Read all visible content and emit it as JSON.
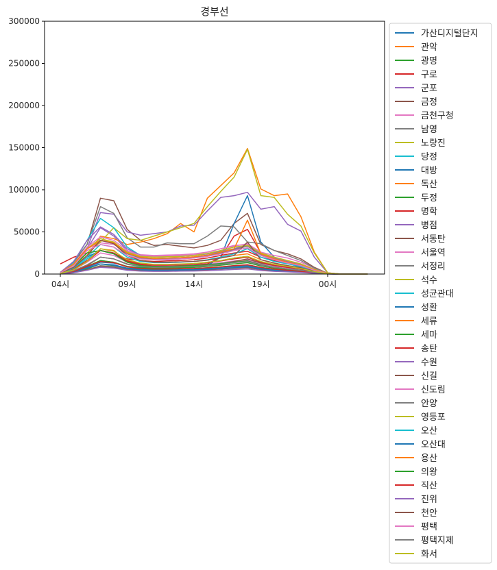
{
  "chart_data": {
    "type": "line",
    "title": "경부선",
    "xlabel": "",
    "ylabel": "",
    "x": [
      "04시",
      "05시",
      "06시",
      "07시",
      "08시",
      "09시",
      "10시",
      "11시",
      "12시",
      "13시",
      "14시",
      "15시",
      "16시",
      "17시",
      "18시",
      "19시",
      "20시",
      "21시",
      "22시",
      "23시",
      "00시",
      "01시",
      "02시",
      "03시"
    ],
    "xticks": [
      "04시",
      "09시",
      "14시",
      "19시",
      "00시"
    ],
    "ylim": [
      0,
      300000
    ],
    "yticks": [
      0,
      50000,
      100000,
      150000,
      200000,
      250000,
      300000
    ],
    "grid": false,
    "legend": "outside-right",
    "colors": [
      "#1f77b4",
      "#ff7f0e",
      "#2ca02c",
      "#d62728",
      "#9467bd",
      "#8c564b",
      "#e377c2",
      "#7f7f7f",
      "#bcbd22",
      "#17becf"
    ],
    "series": [
      {
        "name": "가산디지털단지",
        "values": [
          1500,
          8000,
          20000,
          28000,
          25000,
          14000,
          11000,
          10000,
          10500,
          11000,
          12000,
          14000,
          16000,
          19000,
          21000,
          14000,
          10000,
          8000,
          6000,
          3000,
          500,
          0,
          0,
          0
        ]
      },
      {
        "name": "관악",
        "values": [
          800,
          6000,
          15000,
          30000,
          28000,
          15000,
          11000,
          9000,
          9000,
          9500,
          10000,
          11000,
          13000,
          15000,
          16500,
          11000,
          8000,
          6000,
          4500,
          2500,
          300,
          0,
          0,
          0
        ]
      },
      {
        "name": "광명",
        "values": [
          300,
          2000,
          6000,
          12000,
          10000,
          6000,
          5000,
          4500,
          4500,
          4700,
          5000,
          5500,
          6500,
          7500,
          8500,
          6000,
          4500,
          3500,
          2500,
          1500,
          200,
          0,
          0,
          0
        ]
      },
      {
        "name": "구로",
        "values": [
          12000,
          20000,
          25000,
          28000,
          24000,
          18000,
          16000,
          15000,
          15500,
          16000,
          17000,
          19000,
          22000,
          25000,
          27000,
          20000,
          16000,
          13000,
          10000,
          5000,
          800,
          0,
          0,
          0
        ]
      },
      {
        "name": "군포",
        "values": [
          1500,
          12000,
          30000,
          55000,
          45000,
          28000,
          20000,
          17000,
          17000,
          18000,
          19000,
          21000,
          24000,
          28000,
          31000,
          22000,
          17000,
          13000,
          9000,
          4000,
          600,
          0,
          0,
          0
        ]
      },
      {
        "name": "금정",
        "values": [
          1500,
          14000,
          35000,
          90000,
          87000,
          53000,
          40000,
          34000,
          35000,
          33000,
          31000,
          34000,
          40000,
          60000,
          72000,
          35000,
          28000,
          24000,
          18000,
          8000,
          1000,
          0,
          0,
          0
        ]
      },
      {
        "name": "금천구청",
        "values": [
          600,
          5000,
          14000,
          25000,
          22000,
          14000,
          11000,
          10000,
          10000,
          10500,
          11000,
          12000,
          13500,
          15500,
          17000,
          12000,
          9000,
          7000,
          5000,
          2500,
          300,
          0,
          0,
          0
        ]
      },
      {
        "name": "남영",
        "values": [
          300,
          2000,
          5000,
          10000,
          9000,
          6000,
          5000,
          4500,
          4800,
          5000,
          5200,
          5800,
          6800,
          8000,
          9000,
          6000,
          4500,
          3500,
          2500,
          1200,
          200,
          0,
          0,
          0
        ]
      },
      {
        "name": "노량진",
        "values": [
          1500,
          10000,
          25000,
          40000,
          38000,
          25000,
          20000,
          18000,
          18500,
          19000,
          20000,
          22000,
          25000,
          30000,
          35000,
          25000,
          20000,
          15000,
          10000,
          5000,
          700,
          0,
          0,
          0
        ]
      },
      {
        "name": "당정",
        "values": [
          800,
          6000,
          18000,
          28000,
          24000,
          14000,
          10000,
          9000,
          9000,
          9500,
          10000,
          11000,
          12500,
          14000,
          15500,
          11000,
          8000,
          6000,
          4500,
          2000,
          300,
          0,
          0,
          0
        ]
      },
      {
        "name": "대방",
        "values": [
          400,
          3000,
          8000,
          14000,
          13000,
          9000,
          8000,
          7500,
          7500,
          8000,
          8500,
          10000,
          20000,
          60000,
          93000,
          38000,
          20000,
          13000,
          8000,
          3500,
          400,
          0,
          0,
          0
        ]
      },
      {
        "name": "독산",
        "values": [
          1000,
          8000,
          20000,
          45000,
          42000,
          35000,
          38000,
          42000,
          48000,
          60000,
          50000,
          90000,
          105000,
          120000,
          149000,
          101000,
          93000,
          95000,
          68000,
          26000,
          1500,
          0,
          0,
          0
        ]
      },
      {
        "name": "두정",
        "values": [
          400,
          3000,
          9000,
          16000,
          14000,
          9000,
          7500,
          7000,
          7000,
          7500,
          8000,
          9000,
          10500,
          12000,
          13500,
          9500,
          7000,
          5500,
          4000,
          2000,
          300,
          0,
          0,
          0
        ]
      },
      {
        "name": "명학",
        "values": [
          700,
          5000,
          15000,
          28000,
          25000,
          15000,
          11000,
          9500,
          9500,
          10000,
          10500,
          12000,
          20000,
          45000,
          53000,
          25000,
          18000,
          14000,
          10000,
          4500,
          600,
          0,
          0,
          0
        ]
      },
      {
        "name": "병점",
        "values": [
          1500,
          10000,
          30000,
          73000,
          71000,
          50000,
          46000,
          48000,
          50000,
          57000,
          58000,
          75000,
          91000,
          93000,
          97000,
          77000,
          80000,
          59000,
          51000,
          20000,
          1500,
          0,
          0,
          0
        ]
      },
      {
        "name": "서동탄",
        "values": [
          500,
          4000,
          10000,
          20000,
          18000,
          12000,
          9000,
          8000,
          8200,
          8500,
          9000,
          10000,
          12000,
          15000,
          18000,
          13000,
          10000,
          8000,
          6000,
          3000,
          400,
          0,
          0,
          0
        ]
      },
      {
        "name": "서울역",
        "values": [
          1500,
          12000,
          30000,
          37000,
          35000,
          27000,
          23000,
          22000,
          22500,
          23000,
          24000,
          26000,
          30000,
          33000,
          36000,
          26000,
          22000,
          19000,
          14000,
          7000,
          900,
          0,
          0,
          0
        ]
      },
      {
        "name": "서정리",
        "values": [
          1500,
          15000,
          35000,
          80000,
          72000,
          43000,
          32000,
          32000,
          37000,
          36000,
          36000,
          45000,
          57000,
          56000,
          38000,
          36000,
          28000,
          22000,
          16000,
          7000,
          800,
          0,
          0,
          0
        ]
      },
      {
        "name": "석수",
        "values": [
          1000,
          8000,
          25000,
          38000,
          55000,
          42000,
          40000,
          45000,
          50000,
          55000,
          60000,
          80000,
          98000,
          115000,
          148000,
          93000,
          91000,
          71000,
          57000,
          25000,
          1500,
          0,
          0,
          0
        ]
      },
      {
        "name": "성균관대",
        "values": [
          1000,
          14000,
          40000,
          66000,
          55000,
          32000,
          22000,
          20000,
          20500,
          21000,
          22000,
          24000,
          27000,
          30000,
          33000,
          24000,
          18000,
          14000,
          10000,
          4500,
          600,
          0,
          0,
          0
        ]
      },
      {
        "name": "성환",
        "values": [
          300,
          2500,
          7000,
          12000,
          11000,
          7000,
          6000,
          5500,
          5500,
          5800,
          6000,
          6800,
          7800,
          9000,
          10000,
          7000,
          5200,
          4000,
          2800,
          1300,
          200,
          0,
          0,
          0
        ]
      },
      {
        "name": "세류",
        "values": [
          1000,
          8000,
          22000,
          40000,
          36000,
          22000,
          16000,
          14000,
          14000,
          14500,
          15000,
          16500,
          19000,
          22000,
          24000,
          17000,
          13000,
          10000,
          7500,
          3500,
          500,
          0,
          0,
          0
        ]
      },
      {
        "name": "세마",
        "values": [
          400,
          3000,
          9000,
          16000,
          14000,
          8500,
          6500,
          6000,
          6000,
          6300,
          6600,
          7400,
          8500,
          10000,
          11000,
          7800,
          5800,
          4500,
          3200,
          1500,
          200,
          0,
          0,
          0
        ]
      },
      {
        "name": "송탄",
        "values": [
          800,
          6000,
          16000,
          28000,
          25000,
          16000,
          12000,
          11000,
          11000,
          11500,
          12000,
          13500,
          15500,
          18000,
          20000,
          14000,
          10500,
          8000,
          6000,
          2800,
          400,
          0,
          0,
          0
        ]
      },
      {
        "name": "수원",
        "values": [
          2000,
          15000,
          40000,
          56000,
          47000,
          30000,
          22000,
          20000,
          20500,
          21000,
          22000,
          24000,
          27000,
          30000,
          34000,
          24000,
          19000,
          15000,
          11000,
          5000,
          700,
          0,
          0,
          0
        ]
      },
      {
        "name": "신길",
        "values": [
          300,
          2000,
          5000,
          9000,
          8000,
          5000,
          4200,
          4000,
          4000,
          4200,
          4500,
          5000,
          5800,
          6800,
          7500,
          5200,
          4000,
          3000,
          2200,
          1000,
          150,
          0,
          0,
          0
        ]
      },
      {
        "name": "신도림",
        "values": [
          1500,
          12000,
          32000,
          44000,
          40000,
          28000,
          22000,
          21000,
          21500,
          22000,
          23000,
          26000,
          30000,
          34000,
          35000,
          25000,
          20000,
          16000,
          12000,
          5500,
          800,
          0,
          0,
          0
        ]
      },
      {
        "name": "안양",
        "values": [
          1500,
          12000,
          30000,
          40000,
          36000,
          24000,
          19000,
          17500,
          18000,
          18500,
          19500,
          21500,
          25000,
          29000,
          33000,
          23000,
          18000,
          14000,
          10500,
          5000,
          700,
          0,
          0,
          0
        ]
      },
      {
        "name": "영등포",
        "values": [
          1500,
          12000,
          30000,
          42000,
          38000,
          26000,
          21000,
          20000,
          20500,
          21000,
          22000,
          24500,
          28000,
          32000,
          34000,
          25000,
          20000,
          16000,
          12000,
          5500,
          800,
          0,
          0,
          0
        ]
      },
      {
        "name": "오산",
        "values": [
          1000,
          7000,
          20000,
          35000,
          32000,
          20000,
          15000,
          13500,
          13500,
          14000,
          15000,
          17000,
          20000,
          24000,
          30000,
          20000,
          15000,
          12000,
          8500,
          4000,
          500,
          0,
          0,
          0
        ]
      },
      {
        "name": "오산대",
        "values": [
          300,
          2500,
          7000,
          12000,
          10500,
          6500,
          5000,
          4500,
          4600,
          4800,
          5000,
          5600,
          6500,
          7500,
          8500,
          6000,
          4500,
          3500,
          2500,
          1200,
          200,
          0,
          0,
          0
        ]
      },
      {
        "name": "용산",
        "values": [
          1500,
          12000,
          30000,
          40000,
          37000,
          25000,
          20000,
          18500,
          19000,
          19500,
          20500,
          22500,
          26000,
          30000,
          64000,
          24000,
          18000,
          14000,
          10500,
          5000,
          700,
          0,
          0,
          0
        ]
      },
      {
        "name": "의왕",
        "values": [
          1500,
          10000,
          25000,
          28000,
          24000,
          14000,
          10000,
          9000,
          9000,
          9500,
          10000,
          11000,
          12500,
          14000,
          15500,
          11000,
          8000,
          6000,
          4500,
          2000,
          300,
          0,
          0,
          0
        ]
      },
      {
        "name": "직산",
        "values": [
          400,
          3000,
          9000,
          15000,
          13500,
          8500,
          6500,
          6000,
          6000,
          6300,
          6600,
          7400,
          8500,
          10000,
          11000,
          7800,
          5800,
          4500,
          3200,
          1500,
          200,
          0,
          0,
          0
        ]
      },
      {
        "name": "진위",
        "values": [
          200,
          1500,
          4500,
          8000,
          7000,
          4500,
          3500,
          3200,
          3200,
          3400,
          3600,
          4000,
          4600,
          5400,
          6000,
          4200,
          3200,
          2500,
          1800,
          900,
          100,
          0,
          0,
          0
        ]
      },
      {
        "name": "천안",
        "values": [
          1000,
          8000,
          22000,
          40000,
          36000,
          22000,
          16000,
          14000,
          14000,
          14500,
          15000,
          16500,
          19000,
          22000,
          38000,
          17000,
          13000,
          10000,
          7500,
          3500,
          500,
          0,
          0,
          0
        ]
      },
      {
        "name": "평택",
        "values": [
          1500,
          10000,
          28000,
          35000,
          32000,
          22000,
          18000,
          17000,
          17500,
          18000,
          19000,
          21000,
          24000,
          28000,
          31000,
          22000,
          17000,
          13000,
          10000,
          4500,
          600,
          0,
          0,
          0
        ]
      },
      {
        "name": "평택지제",
        "values": [
          500,
          4000,
          11000,
          20000,
          18000,
          11500,
          9000,
          8000,
          8200,
          8500,
          9000,
          10000,
          11500,
          13500,
          15000,
          10500,
          8000,
          6000,
          4500,
          2000,
          300,
          0,
          0,
          0
        ]
      },
      {
        "name": "화서",
        "values": [
          700,
          5000,
          15000,
          30000,
          27000,
          17000,
          13000,
          11500,
          11500,
          12000,
          12500,
          14000,
          16000,
          19000,
          21000,
          15000,
          11500,
          9000,
          6500,
          3000,
          400,
          0,
          0,
          0
        ]
      }
    ]
  }
}
